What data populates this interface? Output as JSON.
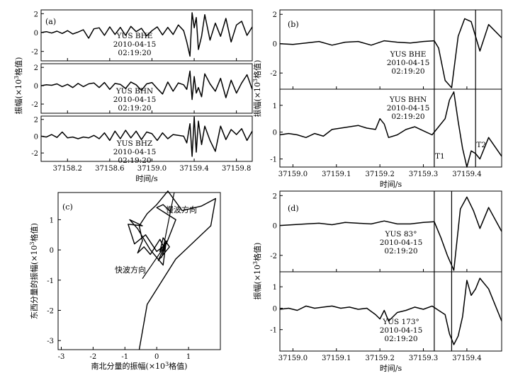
{
  "chart_data": [
    {
      "id": "a",
      "type": "line",
      "panel_label": "(a)",
      "xlim": [
        37157.95,
        37159.95
      ],
      "x_ticks": [
        37158.2,
        37158.6,
        37159.0,
        37159.4,
        37159.8
      ],
      "x_tick_labels": [
        "37158.2",
        "37158.6",
        "37159.0",
        "37159.4",
        "37159.8"
      ],
      "xlabel": "时间/s",
      "ylabel_parts": [
        "振幅(×10",
        "3",
        "格值)"
      ],
      "subplots": [
        {
          "ylim": [
            -3,
            2.4
          ],
          "y_ticks": [
            -2,
            0,
            2
          ],
          "y_tick_labels": [
            "-2",
            "0",
            "2"
          ],
          "annotation": [
            "YUS  BHE",
            "2010-04-15",
            "02:19:20"
          ],
          "x": [
            37157.95,
            37158.0,
            37158.05,
            37158.1,
            37158.15,
            37158.2,
            37158.25,
            37158.3,
            37158.35,
            37158.4,
            37158.45,
            37158.5,
            37158.55,
            37158.6,
            37158.65,
            37158.7,
            37158.75,
            37158.8,
            37158.85,
            37158.9,
            37158.95,
            37159.0,
            37159.05,
            37159.1,
            37159.15,
            37159.2,
            37159.25,
            37159.3,
            37159.33,
            37159.36,
            37159.38,
            37159.4,
            37159.42,
            37159.44,
            37159.47,
            37159.5,
            37159.55,
            37159.6,
            37159.65,
            37159.7,
            37159.75,
            37159.8,
            37159.85,
            37159.9,
            37159.95
          ],
          "y": [
            0.0,
            0.1,
            -0.05,
            0.15,
            -0.1,
            0.2,
            -0.15,
            0.05,
            0.3,
            -0.6,
            0.4,
            0.5,
            -0.3,
            0.6,
            -0.2,
            0.55,
            -0.3,
            0.65,
            0.1,
            0.45,
            -0.35,
            0.2,
            0.6,
            -0.25,
            0.55,
            -0.2,
            0.8,
            0.2,
            -1.0,
            -2.5,
            2.1,
            0.5,
            1.6,
            -1.8,
            -0.4,
            1.9,
            -0.8,
            1.0,
            -0.4,
            1.5,
            -1.0,
            0.8,
            1.2,
            -0.3,
            0.6
          ]
        },
        {
          "ylim": [
            -3,
            2.4
          ],
          "y_ticks": [
            -2,
            0,
            2
          ],
          "y_tick_labels": [
            "-2",
            "0",
            "2"
          ],
          "annotation": [
            "YUS  BHN",
            "2010-04-15",
            "02:19:20"
          ],
          "x": [
            37157.95,
            37158.0,
            37158.05,
            37158.1,
            37158.15,
            37158.2,
            37158.25,
            37158.3,
            37158.35,
            37158.4,
            37158.45,
            37158.5,
            37158.55,
            37158.6,
            37158.65,
            37158.7,
            37158.75,
            37158.8,
            37158.85,
            37158.9,
            37158.95,
            37159.0,
            37159.05,
            37159.1,
            37159.15,
            37159.2,
            37159.25,
            37159.3,
            37159.33,
            37159.36,
            37159.38,
            37159.4,
            37159.42,
            37159.44,
            37159.47,
            37159.5,
            37159.55,
            37159.6,
            37159.65,
            37159.7,
            37159.75,
            37159.8,
            37159.85,
            37159.9,
            37159.95
          ],
          "y": [
            0.0,
            0.1,
            0.05,
            0.2,
            -0.1,
            0.15,
            -0.2,
            0.25,
            -0.1,
            0.2,
            0.3,
            -0.2,
            0.35,
            -0.4,
            0.25,
            0.15,
            -0.3,
            0.4,
            0.1,
            -0.5,
            0.2,
            0.35,
            -0.3,
            -0.9,
            0.4,
            -0.6,
            0.3,
            0.1,
            -0.4,
            1.6,
            -1.5,
            1.0,
            -0.8,
            -0.2,
            -1.2,
            1.3,
            0.2,
            -0.6,
            0.8,
            -1.3,
            0.6,
            -0.8,
            0.3,
            1.2,
            -0.4
          ]
        },
        {
          "ylim": [
            -3,
            2.4
          ],
          "y_ticks": [
            -2,
            0,
            2
          ],
          "y_tick_labels": [
            "-2",
            "0",
            "2"
          ],
          "annotation": [
            "YUS  BHZ",
            "2010-04-15",
            "02:19:20"
          ],
          "x": [
            37157.95,
            37158.0,
            37158.05,
            37158.1,
            37158.15,
            37158.2,
            37158.25,
            37158.3,
            37158.35,
            37158.4,
            37158.45,
            37158.5,
            37158.55,
            37158.6,
            37158.65,
            37158.7,
            37158.75,
            37158.8,
            37158.85,
            37158.9,
            37158.95,
            37159.0,
            37159.05,
            37159.1,
            37159.15,
            37159.2,
            37159.25,
            37159.3,
            37159.33,
            37159.36,
            37159.38,
            37159.4,
            37159.42,
            37159.44,
            37159.47,
            37159.5,
            37159.55,
            37159.6,
            37159.65,
            37159.7,
            37159.75,
            37159.8,
            37159.85,
            37159.9,
            37159.95
          ],
          "y": [
            0.0,
            -0.1,
            0.2,
            -0.15,
            0.5,
            -0.2,
            -0.1,
            -0.3,
            -0.1,
            -0.2,
            0.1,
            -0.3,
            0.4,
            -0.5,
            0.6,
            -0.3,
            0.7,
            -0.2,
            0.6,
            -0.4,
            0.5,
            0.3,
            -0.5,
            0.4,
            -0.3,
            0.2,
            0.1,
            0.0,
            -0.8,
            1.5,
            -2.4,
            2.3,
            -1.9,
            1.8,
            -1.0,
            1.2,
            -0.5,
            -1.8,
            1.2,
            -0.4,
            0.8,
            0.2,
            0.9,
            -0.5,
            0.6
          ]
        }
      ]
    },
    {
      "id": "b",
      "type": "line",
      "panel_label": "(b)",
      "xlim": [
        37158.97,
        37159.48
      ],
      "x_ticks": [
        37159.0,
        37159.1,
        37159.2,
        37159.3,
        37159.4
      ],
      "x_tick_labels": [
        "37159.0",
        "37159.1",
        "37159.2",
        "37159.3",
        "37159.4"
      ],
      "xlabel": "时间/s",
      "ylabel_parts": [
        "振幅(×10",
        "3",
        "格值)"
      ],
      "markers": [
        {
          "x": 37159.325,
          "label": "T1"
        },
        {
          "x": 37159.42,
          "label": "T2"
        }
      ],
      "subplots": [
        {
          "ylim": [
            -3.1,
            2.3
          ],
          "y_ticks": [
            -2,
            0,
            2
          ],
          "y_tick_labels": [
            "-2",
            "0",
            "2"
          ],
          "annotation": [
            "YUS  BHE",
            "2010-04-15",
            "02:19:20"
          ],
          "x": [
            37158.97,
            37159.0,
            37159.03,
            37159.06,
            37159.09,
            37159.12,
            37159.15,
            37159.18,
            37159.21,
            37159.24,
            37159.27,
            37159.3,
            37159.325,
            37159.335,
            37159.35,
            37159.365,
            37159.38,
            37159.395,
            37159.41,
            37159.43,
            37159.45,
            37159.48
          ],
          "y": [
            0.0,
            -0.05,
            0.05,
            0.15,
            -0.1,
            0.1,
            0.15,
            -0.1,
            0.2,
            0.1,
            0.05,
            0.15,
            0.2,
            -0.3,
            -2.5,
            -3.0,
            0.5,
            1.7,
            1.5,
            -0.5,
            1.3,
            0.4
          ]
        },
        {
          "ylim": [
            -1.3,
            1.6
          ],
          "y_ticks": [
            -1,
            0,
            1
          ],
          "y_tick_labels": [
            "-1",
            "0",
            "1"
          ],
          "annotation": [
            "YUS  BHN",
            "2010-04-15",
            "02:19:20"
          ],
          "x": [
            37158.97,
            37158.99,
            37159.01,
            37159.03,
            37159.05,
            37159.07,
            37159.09,
            37159.11,
            37159.13,
            37159.15,
            37159.17,
            37159.19,
            37159.2,
            37159.21,
            37159.22,
            37159.24,
            37159.26,
            37159.28,
            37159.3,
            37159.32,
            37159.335,
            37159.35,
            37159.36,
            37159.37,
            37159.38,
            37159.39,
            37159.4,
            37159.41,
            37159.42,
            37159.43,
            37159.45,
            37159.48
          ],
          "y": [
            -0.1,
            -0.05,
            -0.1,
            -0.2,
            -0.05,
            -0.15,
            0.1,
            0.15,
            0.2,
            0.25,
            0.15,
            0.1,
            0.5,
            0.3,
            -0.2,
            -0.1,
            0.1,
            0.2,
            0.05,
            -0.1,
            0.2,
            0.5,
            1.2,
            1.5,
            0.4,
            -0.6,
            -1.3,
            -0.7,
            -0.8,
            -1.0,
            -0.2,
            -0.9
          ]
        }
      ]
    },
    {
      "id": "c",
      "type": "line",
      "panel_label": "(c)",
      "xlim": [
        -3.1,
        2.0
      ],
      "ylim": [
        -3.3,
        1.9
      ],
      "x_ticks": [
        -3,
        -2,
        -1,
        0,
        1
      ],
      "x_tick_labels": [
        "-3",
        "-2",
        "-1",
        "0",
        "1"
      ],
      "y_ticks": [
        -3,
        -2,
        -1,
        0,
        1
      ],
      "y_tick_labels": [
        "-3",
        "-2",
        "-1",
        "0",
        "1"
      ],
      "xlabel_parts": [
        "南北分量的振幅(×10",
        "3",
        "格值)"
      ],
      "ylabel_parts": [
        "东西分量的振幅(×10",
        "3",
        "格值)"
      ],
      "annotations": [
        "慢波方向",
        "快波方向"
      ],
      "x": [
        -0.55,
        -0.3,
        0.6,
        1.7,
        1.85,
        1.4,
        0.8,
        0.35,
        0.0,
        -0.3,
        -0.55,
        -0.45,
        -0.6,
        -0.4,
        -0.2,
        -0.05,
        0.1,
        0.25,
        0.15,
        0.3,
        0.05,
        0.4,
        0.2,
        0.1,
        0.3,
        0.2,
        -0.2,
        -0.6,
        -0.85,
        -0.45,
        -0.9,
        -0.7,
        -0.35,
        0.0,
        0.3,
        0.6,
        0.3,
        0.0,
        0.2,
        0.45
      ],
      "y": [
        -3.3,
        -1.8,
        -0.3,
        0.8,
        1.7,
        1.45,
        1.3,
        1.95,
        1.5,
        1.2,
        0.8,
        0.3,
        -0.1,
        0.1,
        -0.15,
        0.1,
        0.35,
        0.05,
        -0.25,
        0.25,
        -0.35,
        0.1,
        0.4,
        -0.05,
        0.3,
        -0.5,
        0.0,
        0.7,
        1.0,
        0.8,
        0.85,
        0.2,
        0.5,
        -0.05,
        0.2,
        1.0,
        1.2,
        1.4,
        1.5,
        1.25
      ]
    },
    {
      "id": "d",
      "type": "line",
      "panel_label": "(d)",
      "xlim": [
        37158.97,
        37159.48
      ],
      "x_ticks": [
        37159.0,
        37159.1,
        37159.2,
        37159.3,
        37159.4
      ],
      "x_tick_labels": [
        "37159.0",
        "37159.1",
        "37159.2",
        "37159.3",
        "37159.4"
      ],
      "xlabel": "时间/s",
      "ylabel_parts": [
        "振幅(×10",
        "3",
        "格值)"
      ],
      "markers": [
        {
          "x": 37159.325,
          "label": ""
        },
        {
          "x": 37159.365,
          "label": ""
        }
      ],
      "subplots": [
        {
          "ylim": [
            -3.1,
            2.3
          ],
          "y_ticks": [
            -2,
            0,
            2
          ],
          "y_tick_labels": [
            "-2",
            "0",
            "2"
          ],
          "annotation": [
            "YUS  83°",
            "2010-04-15",
            "02:19:20"
          ],
          "x": [
            37158.97,
            37159.0,
            37159.03,
            37159.06,
            37159.09,
            37159.12,
            37159.15,
            37159.18,
            37159.21,
            37159.24,
            37159.27,
            37159.3,
            37159.325,
            37159.34,
            37159.355,
            37159.37,
            37159.385,
            37159.4,
            37159.415,
            37159.43,
            37159.45,
            37159.48
          ],
          "y": [
            0.0,
            0.05,
            0.1,
            0.15,
            0.05,
            0.2,
            0.15,
            0.1,
            0.3,
            0.1,
            0.1,
            0.2,
            0.25,
            -0.8,
            -2.0,
            -3.0,
            1.1,
            1.9,
            1.0,
            -0.2,
            1.2,
            -0.4
          ]
        },
        {
          "ylim": [
            -2.0,
            1.7
          ],
          "y_ticks": [
            -1,
            0,
            1
          ],
          "y_tick_labels": [
            "-1",
            "0",
            "1"
          ],
          "annotation": [
            "YUS  173°",
            "2010-04-15",
            "02:19:20"
          ],
          "x": [
            37158.97,
            37158.99,
            37159.01,
            37159.03,
            37159.05,
            37159.07,
            37159.09,
            37159.11,
            37159.13,
            37159.15,
            37159.17,
            37159.19,
            37159.2,
            37159.21,
            37159.22,
            37159.24,
            37159.26,
            37159.28,
            37159.3,
            37159.32,
            37159.335,
            37159.35,
            37159.36,
            37159.37,
            37159.38,
            37159.39,
            37159.4,
            37159.41,
            37159.42,
            37159.43,
            37159.45,
            37159.48
          ],
          "y": [
            -0.05,
            0.0,
            -0.1,
            0.1,
            0.0,
            0.05,
            0.1,
            0.0,
            0.05,
            -0.05,
            0.0,
            -0.3,
            -0.5,
            -0.1,
            -0.6,
            -0.2,
            -0.1,
            0.05,
            -0.05,
            0.1,
            -0.1,
            -0.3,
            -1.2,
            -1.7,
            -1.3,
            -0.4,
            1.3,
            0.6,
            0.9,
            1.4,
            0.9,
            -0.6
          ]
        }
      ]
    }
  ]
}
